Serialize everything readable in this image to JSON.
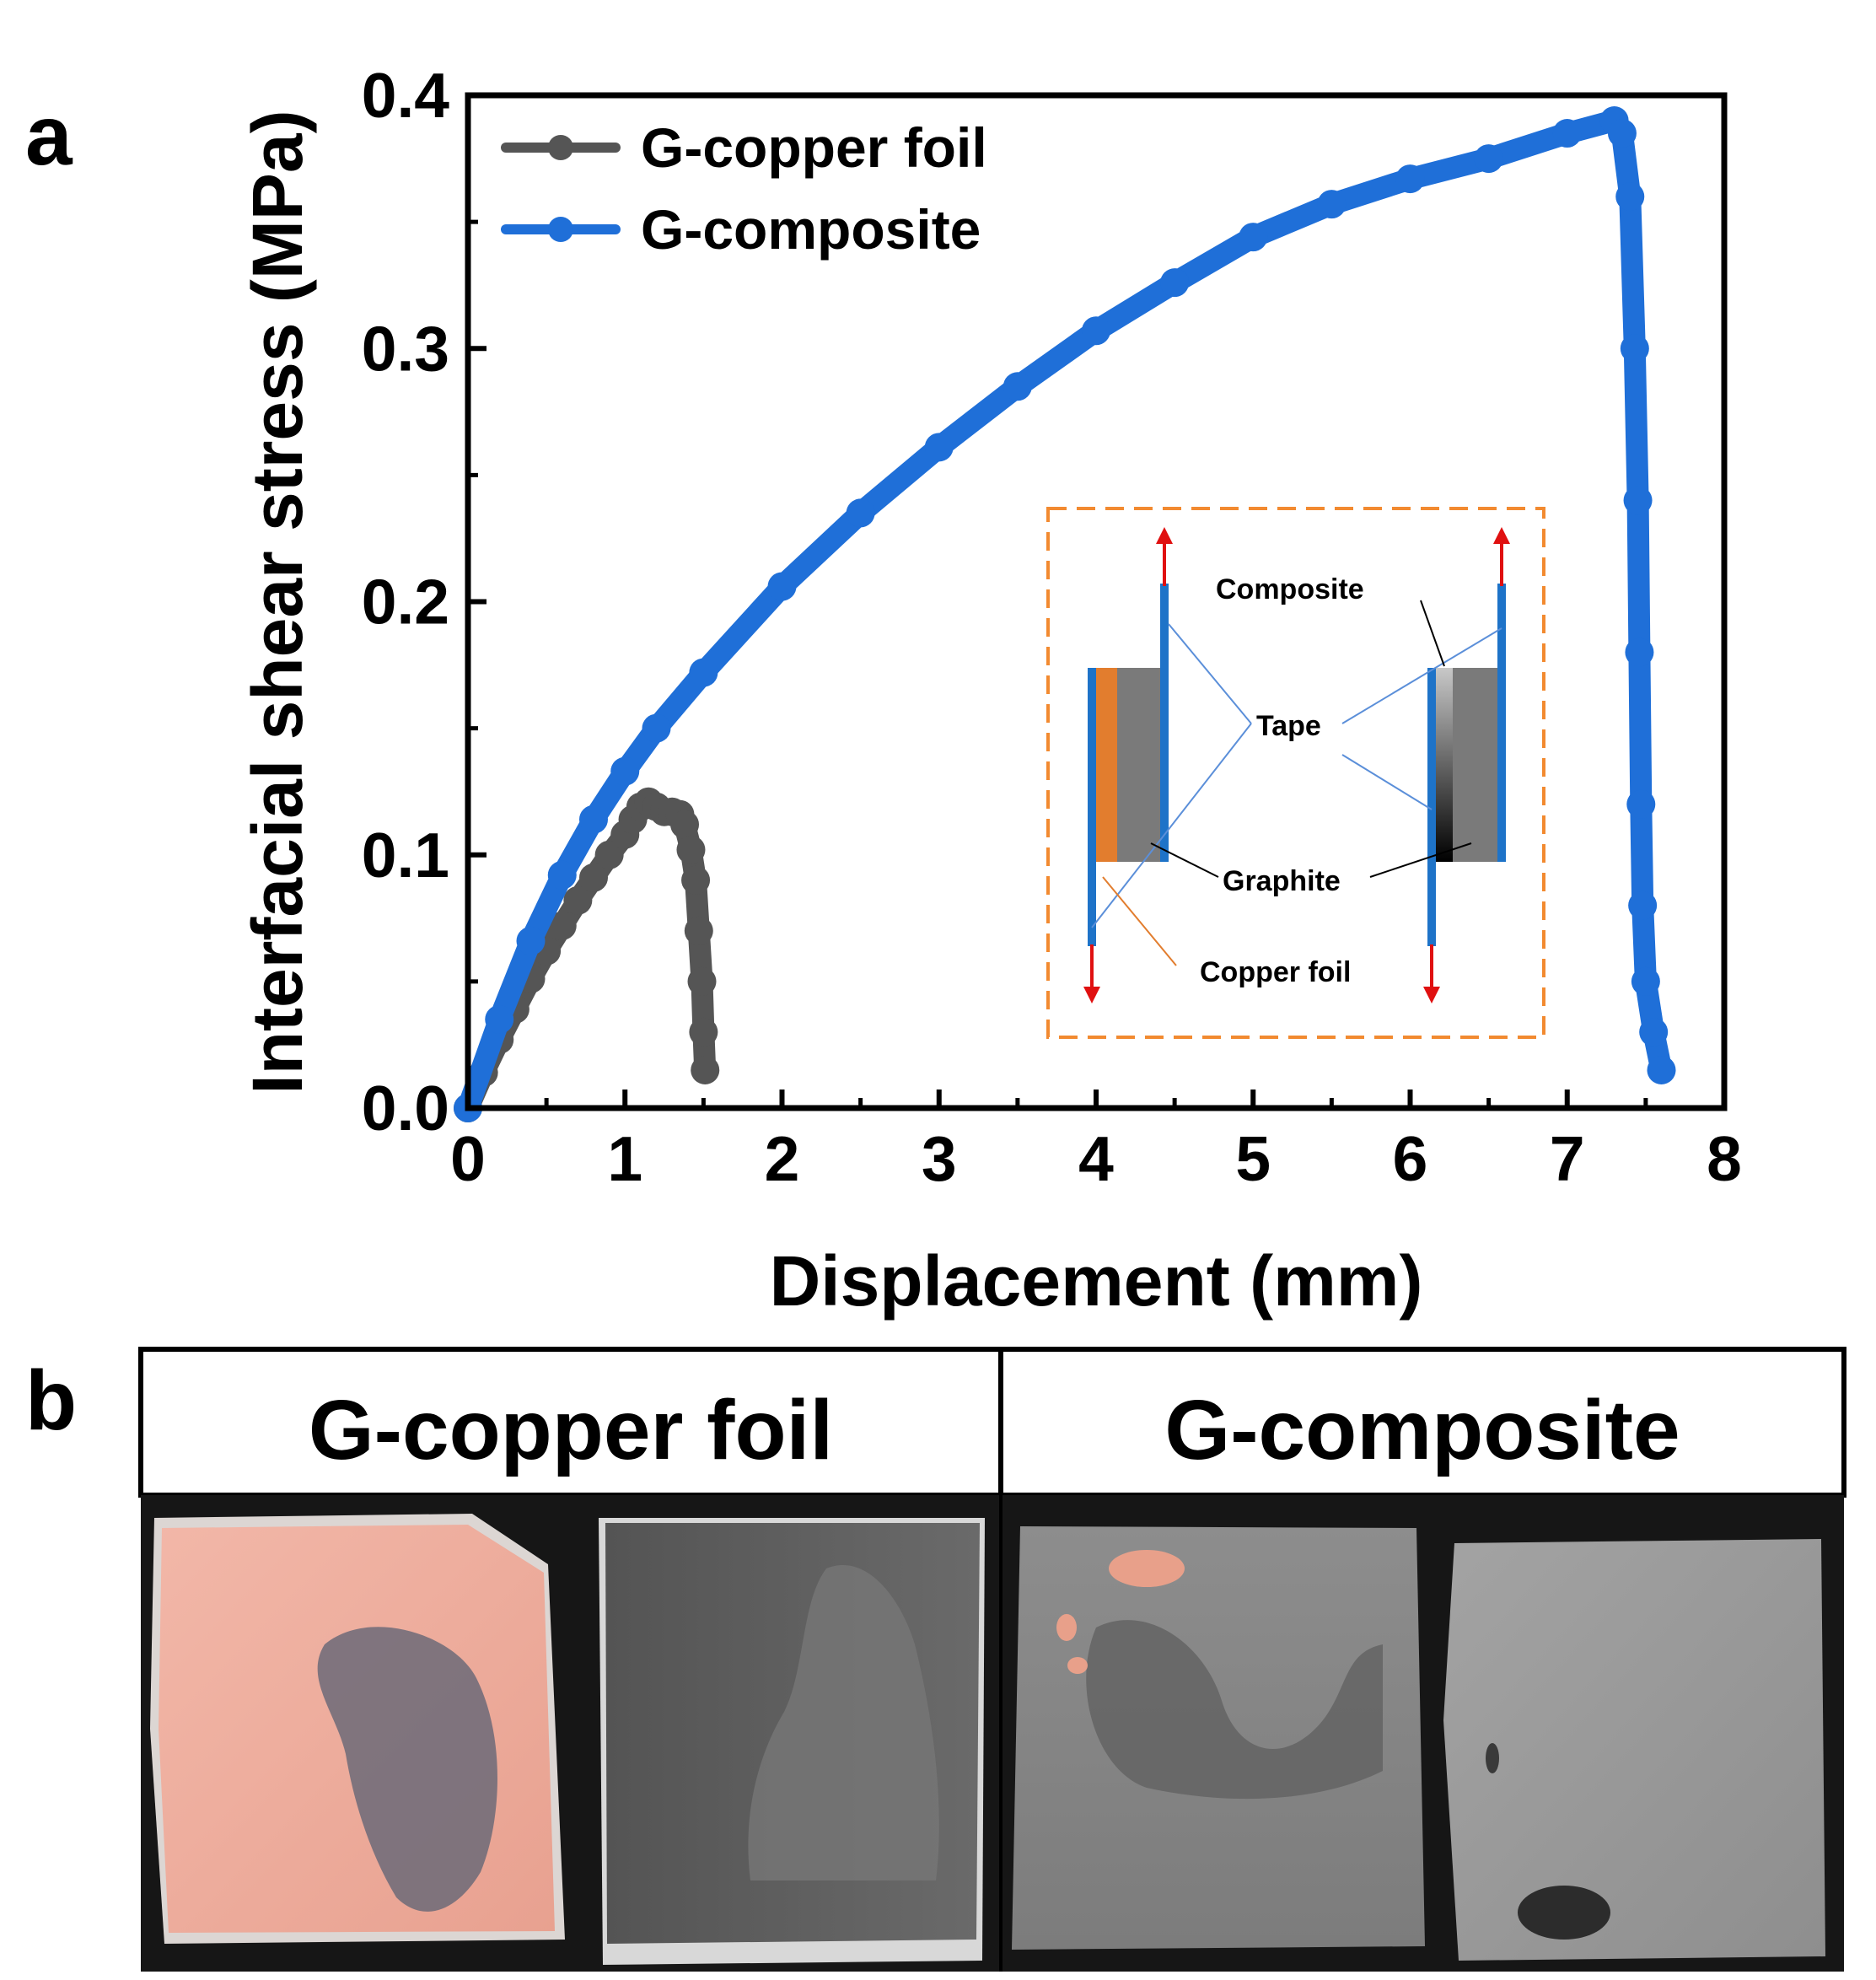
{
  "panels": {
    "a_label": "a",
    "b_label": "b"
  },
  "chart_data": {
    "type": "line",
    "title": "",
    "xlabel": "Displacement (mm)",
    "ylabel": "Interfacial shear stress (MPa)",
    "xlim": [
      0,
      8
    ],
    "ylim": [
      0,
      0.4
    ],
    "x_ticks": [
      "0",
      "1",
      "2",
      "3",
      "4",
      "5",
      "6",
      "7",
      "8"
    ],
    "y_ticks": [
      "0.0",
      "0.1",
      "0.2",
      "0.3",
      "0.4"
    ],
    "legend_position": "top-left",
    "grid": false,
    "series": [
      {
        "name": "G-copper foil",
        "color": "#555555",
        "points": [
          [
            0,
            0
          ],
          [
            0.1,
            0.014
          ],
          [
            0.2,
            0.027
          ],
          [
            0.3,
            0.039
          ],
          [
            0.4,
            0.051
          ],
          [
            0.5,
            0.062
          ],
          [
            0.6,
            0.072
          ],
          [
            0.7,
            0.082
          ],
          [
            0.8,
            0.091
          ],
          [
            0.9,
            0.1
          ],
          [
            1.0,
            0.108
          ],
          [
            1.05,
            0.114
          ],
          [
            1.1,
            0.119
          ],
          [
            1.15,
            0.121
          ],
          [
            1.2,
            0.119
          ],
          [
            1.25,
            0.117
          ],
          [
            1.3,
            0.117
          ],
          [
            1.35,
            0.116
          ],
          [
            1.38,
            0.112
          ],
          [
            1.42,
            0.102
          ],
          [
            1.45,
            0.09
          ],
          [
            1.47,
            0.07
          ],
          [
            1.49,
            0.05
          ],
          [
            1.5,
            0.03
          ],
          [
            1.51,
            0.015
          ]
        ]
      },
      {
        "name": "G-composite",
        "color": "#1f6fd8",
        "points": [
          [
            0,
            0
          ],
          [
            0.2,
            0.035
          ],
          [
            0.4,
            0.066
          ],
          [
            0.6,
            0.092
          ],
          [
            0.8,
            0.114
          ],
          [
            1.0,
            0.133
          ],
          [
            1.2,
            0.15
          ],
          [
            1.5,
            0.172
          ],
          [
            2.0,
            0.206
          ],
          [
            2.5,
            0.235
          ],
          [
            3.0,
            0.261
          ],
          [
            3.5,
            0.285
          ],
          [
            4.0,
            0.307
          ],
          [
            4.5,
            0.326
          ],
          [
            5.0,
            0.344
          ],
          [
            5.5,
            0.357
          ],
          [
            6.0,
            0.367
          ],
          [
            6.5,
            0.375
          ],
          [
            7.0,
            0.385
          ],
          [
            7.3,
            0.39
          ],
          [
            7.35,
            0.385
          ],
          [
            7.4,
            0.36
          ],
          [
            7.43,
            0.3
          ],
          [
            7.45,
            0.24
          ],
          [
            7.46,
            0.18
          ],
          [
            7.47,
            0.12
          ],
          [
            7.48,
            0.08
          ],
          [
            7.5,
            0.05
          ],
          [
            7.55,
            0.03
          ],
          [
            7.6,
            0.015
          ]
        ]
      }
    ]
  },
  "inset": {
    "labels": {
      "composite": "Composite",
      "tape": "Tape",
      "graphite": "Graphite",
      "copper_foil": "Copper foil"
    }
  },
  "photos": {
    "left_title": "G-copper foil",
    "right_title": "G-composite"
  }
}
